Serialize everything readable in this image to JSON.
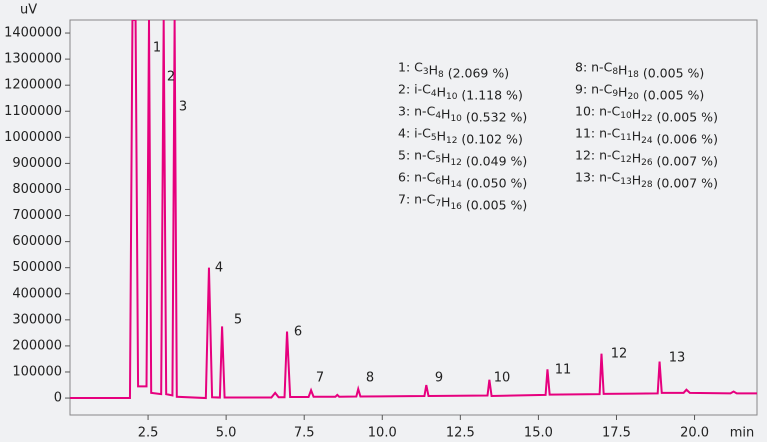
{
  "chart_data": {
    "type": "line",
    "x_axis_label": "min",
    "y_axis_label": "uV",
    "color": "#e6007e",
    "xlim": [
      0,
      22
    ],
    "ylim": [
      -65000,
      1450000
    ],
    "xticks": [
      2.5,
      {
        "value": 5,
        "label": "5.0"
      },
      7.5,
      {
        "value": 10,
        "label": "10.0"
      },
      12.5,
      {
        "value": 15,
        "label": "15.0"
      },
      17.5,
      {
        "value": 20,
        "label": "20.0"
      }
    ],
    "yticks": [
      0,
      100000,
      200000,
      300000,
      400000,
      500000,
      600000,
      700000,
      800000,
      900000,
      1000000,
      1100000,
      1200000,
      1300000,
      1400000
    ],
    "grid": false,
    "x": [
      0,
      1.92,
      2.0,
      2.1,
      2.18,
      2.45,
      2.53,
      2.6,
      2.92,
      3.0,
      3.08,
      3.28,
      3.35,
      3.42,
      4.35,
      4.45,
      4.55,
      4.8,
      4.87,
      4.95,
      6.45,
      6.57,
      6.68,
      6.87,
      6.95,
      7.05,
      7.64,
      7.72,
      7.8,
      8.5,
      8.56,
      8.62,
      9.17,
      9.23,
      9.3,
      11.35,
      11.41,
      11.48,
      13.37,
      13.43,
      13.5,
      15.23,
      15.29,
      15.36,
      16.96,
      17.02,
      17.09,
      18.82,
      18.88,
      18.95,
      19.65,
      19.74,
      19.85,
      21.15,
      21.25,
      21.35,
      22
    ],
    "values": [
      0,
      0,
      1450000,
      1450000,
      45000,
      45000,
      1450000,
      20000,
      15000,
      1450000,
      15000,
      10000,
      1450000,
      5000,
      0,
      500000,
      3000,
      2000,
      275000,
      2000,
      2000,
      20000,
      3000,
      3000,
      255000,
      4000,
      4000,
      30000,
      5000,
      5000,
      12000,
      5000,
      6000,
      35000,
      6000,
      8000,
      50000,
      8000,
      10000,
      70000,
      8000,
      12000,
      110000,
      13000,
      15000,
      170000,
      16000,
      18000,
      140000,
      20000,
      20000,
      32000,
      20000,
      18000,
      25000,
      18000,
      18000
    ],
    "peak_labels": [
      "1",
      "2",
      "3",
      "4",
      "5",
      "6",
      "7",
      "8",
      "9",
      "10",
      "11",
      "12",
      "13"
    ],
    "legend_entries": [
      "1: C3H8 (2.069 %)",
      "2: i-C4H10 (1.118 %)",
      "3: n-C4H10 (0.532 %)",
      "4: i-C5H12 (0.102 %)",
      "5: n-C5H12 (0.049 %)",
      "6: n-C6H14 (0.050 %)",
      "7: n-C7H16 (0.005 %)",
      "8: n-C8H18 (0.005 %)",
      "9: n-C9H20 (0.005 %)",
      "10: n-C10H22 (0.005 %)",
      "11: n-C11H24 (0.006 %)",
      "12: n-C12H26 (0.007 %)",
      "13: n-C13H28 (0.007 %)"
    ]
  }
}
